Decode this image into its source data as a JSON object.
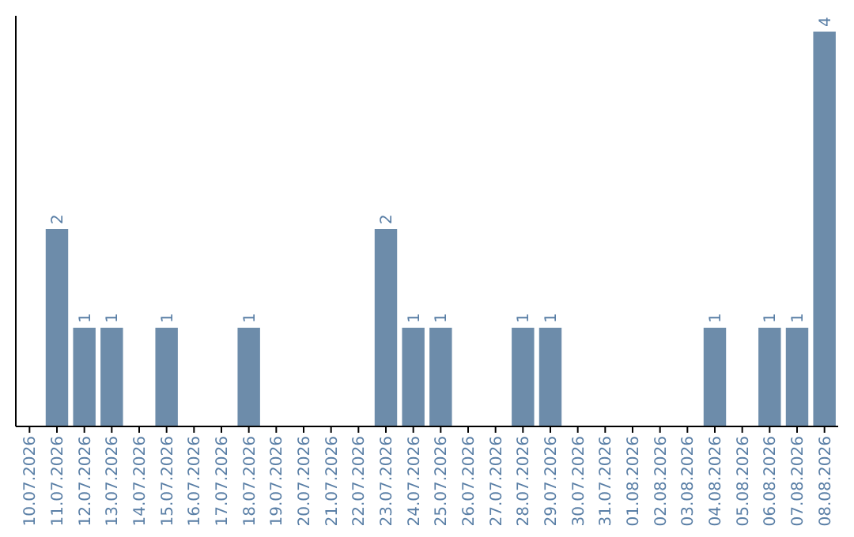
{
  "chart_data": {
    "type": "bar",
    "categories": [
      "10.07.2026",
      "11.07.2026",
      "12.07.2026",
      "13.07.2026",
      "14.07.2026",
      "15.07.2026",
      "16.07.2026",
      "17.07.2026",
      "18.07.2026",
      "19.07.2026",
      "20.07.2026",
      "21.07.2026",
      "22.07.2026",
      "23.07.2026",
      "24.07.2026",
      "25.07.2026",
      "26.07.2026",
      "27.07.2026",
      "28.07.2026",
      "29.07.2026",
      "30.07.2026",
      "31.07.2026",
      "01.08.2026",
      "02.08.2026",
      "03.08.2026",
      "04.08.2026",
      "05.08.2026",
      "06.08.2026",
      "07.08.2026",
      "08.08.2026"
    ],
    "values": [
      0,
      2,
      1,
      1,
      0,
      1,
      0,
      0,
      1,
      0,
      0,
      0,
      0,
      2,
      1,
      1,
      0,
      0,
      1,
      1,
      0,
      0,
      0,
      0,
      0,
      1,
      0,
      1,
      1,
      4
    ],
    "value_labels": [
      null,
      "2",
      "1",
      "1",
      null,
      "1",
      null,
      null,
      "1",
      null,
      null,
      null,
      null,
      "2",
      "1",
      "1",
      null,
      null,
      "1",
      "1",
      null,
      null,
      null,
      null,
      null,
      "1",
      null,
      "1",
      "1",
      "4"
    ],
    "color": "#6d8caa",
    "relative": false
  }
}
